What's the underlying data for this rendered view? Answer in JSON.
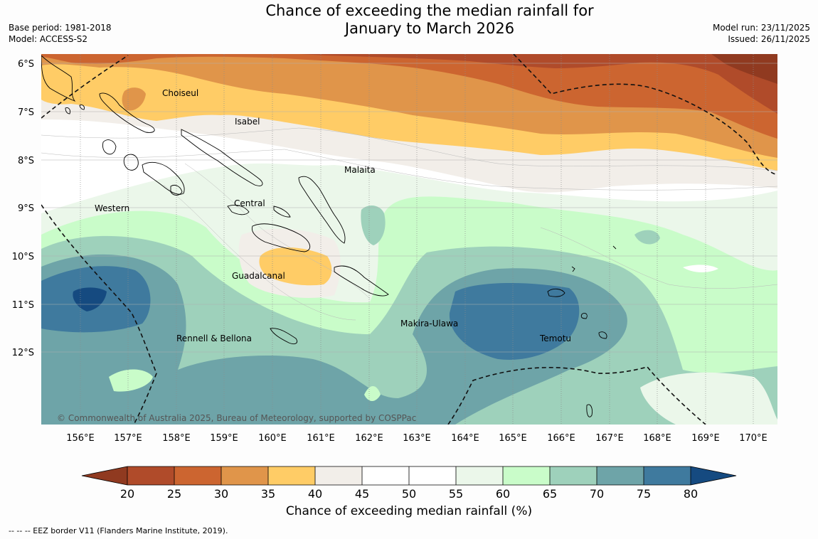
{
  "header": {
    "title_line1": "Chance of exceeding the median rainfall for",
    "title_line2": "January to March 2026",
    "base_period": "Base period: 1981-2018",
    "model": "Model: ACCESS-S2",
    "model_run": "Model run: 23/11/2025",
    "issued": "Issued: 26/11/2025"
  },
  "map": {
    "lat_labels": [
      "6°S",
      "7°S",
      "8°S",
      "9°S",
      "10°S",
      "11°S",
      "12°S"
    ],
    "lon_labels": [
      "156°E",
      "157°E",
      "158°E",
      "159°E",
      "160°E",
      "161°E",
      "162°E",
      "163°E",
      "164°E",
      "165°E",
      "166°E",
      "167°E",
      "168°E",
      "169°E",
      "170°E"
    ],
    "places": [
      "Choiseul",
      "Isabel",
      "Malaita",
      "Western",
      "Central",
      "Guadalcanal",
      "Makira-Ulawa",
      "Rennell & Bellona",
      "Temotu"
    ],
    "copyright": "© Commonwealth of Australia 2025, Bureau of Meteorology, supported by COSPPac"
  },
  "colorbar": {
    "ticks": [
      "20",
      "25",
      "30",
      "35",
      "40",
      "45",
      "50",
      "55",
      "60",
      "65",
      "70",
      "75",
      "80"
    ],
    "colors": [
      "#b04b2a",
      "#cc6530",
      "#e0954a",
      "#ffcc66",
      "#f2eee9",
      "#ffffff",
      "#ffffff",
      "#ebf7ea",
      "#c9fcc9",
      "#9ed1bb",
      "#6ea4a8",
      "#3f7a9e"
    ],
    "low_color": "#903a20",
    "high_color": "#154a80",
    "label": "Chance of exceeding median rainfall (%)"
  },
  "footnote": "--  --  -- EEZ border V11 (Flanders Marine Institute, 2019)."
}
